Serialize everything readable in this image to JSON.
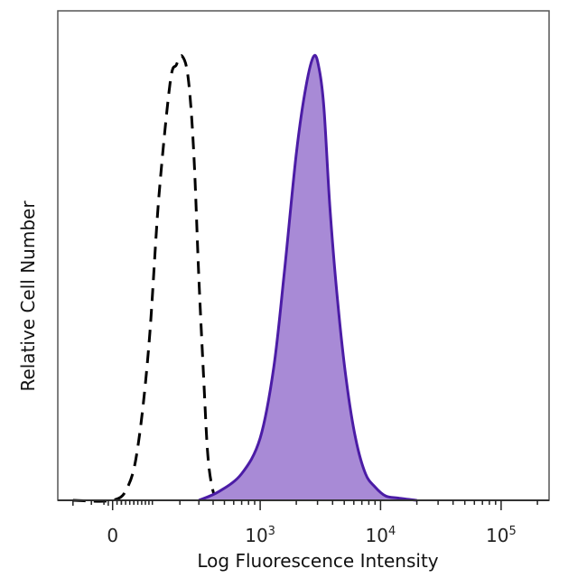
{
  "chart_data": {
    "type": "area",
    "title": "",
    "xlabel": "Log Fluorescence Intensity",
    "ylabel": "Relative Cell Number",
    "x_scale": "biexponential (log)",
    "x_ticks": [
      {
        "value": 0,
        "base": "0",
        "exp": ""
      },
      {
        "value": 1000,
        "base": "10",
        "exp": "3"
      },
      {
        "value": 10000,
        "base": "10",
        "exp": "4"
      },
      {
        "value": 100000,
        "base": "10",
        "exp": "5"
      }
    ],
    "xlim": [
      -150,
      250000
    ],
    "ylim": [
      0,
      100
    ],
    "grid": false,
    "legend": "none",
    "series": [
      {
        "style": "dashed",
        "color": "#000000",
        "fill": "none",
        "x": [
          -100,
          0,
          35,
          60,
          90,
          120,
          160,
          185,
          210,
          240,
          270,
          300,
          330,
          360,
          400,
          440
        ],
        "y": [
          0,
          0,
          3,
          12,
          35,
          68,
          94,
          98,
          100,
          95,
          78,
          50,
          28,
          10,
          2,
          0
        ]
      },
      {
        "style": "solid",
        "color": "#4b1ca6",
        "fill": "#a88ad6",
        "x": [
          300,
          450,
          700,
          1000,
          1300,
          1600,
          2000,
          2400,
          2800,
          3100,
          3400,
          3800,
          4400,
          5200,
          6200,
          7500,
          9000,
          11000,
          14000,
          20000
        ],
        "y": [
          0,
          2,
          6,
          14,
          30,
          52,
          78,
          93,
          100,
          97,
          88,
          66,
          45,
          27,
          14,
          6,
          3,
          1,
          0.5,
          0
        ]
      }
    ]
  }
}
